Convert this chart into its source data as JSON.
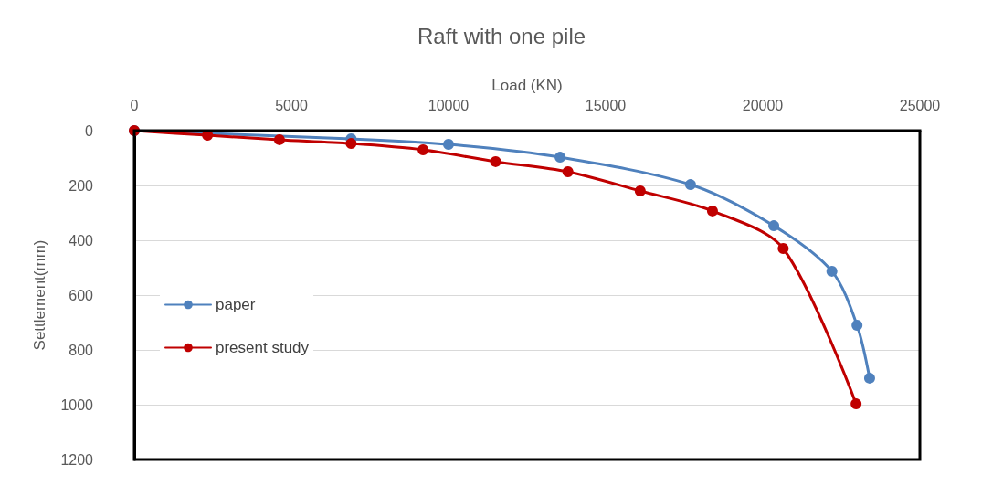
{
  "chart_data": {
    "type": "line",
    "title": "Raft with one pile",
    "xlabel": "Load (KN)",
    "ylabel": "Settlement(mm)",
    "xlim": [
      0,
      25000
    ],
    "xticks": [
      0,
      5000,
      10000,
      15000,
      20000,
      25000
    ],
    "ylim": [
      1200,
      0
    ],
    "yticks": [
      0,
      200,
      400,
      600,
      800,
      1000,
      1200
    ],
    "grid": "y",
    "legend": "left",
    "marker": "circle",
    "line_style": "solid",
    "series": [
      {
        "name": "paper",
        "color": "#4f81bd",
        "x": [
          0,
          6900,
          10000,
          13550,
          17700,
          20350,
          22200,
          23000,
          23400
        ],
        "values": [
          0,
          30,
          50,
          97,
          197,
          347,
          513,
          710,
          903
        ]
      },
      {
        "name": "present study",
        "color": "#c00000",
        "x": [
          0,
          2330,
          4620,
          6900,
          9190,
          11500,
          13800,
          16100,
          18400,
          20650,
          22970
        ],
        "values": [
          0,
          17,
          33,
          47,
          70,
          113,
          150,
          220,
          293,
          430,
          997
        ]
      }
    ]
  }
}
